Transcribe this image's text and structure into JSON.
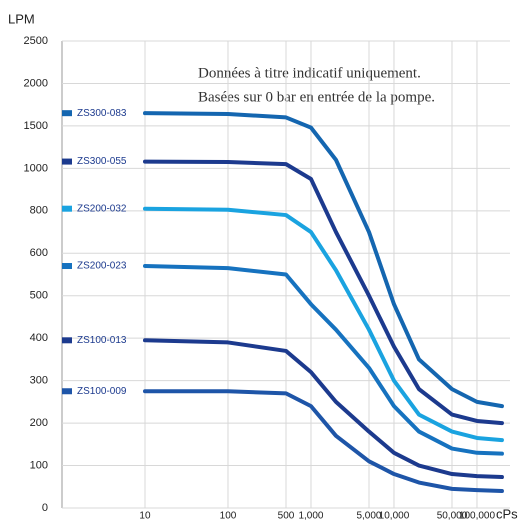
{
  "chart_data": {
    "type": "line",
    "y_label": "LPM",
    "x_label": "cPs",
    "annotation": [
      "Données à titre indicatif uniquement.",
      "Basées sur 0 bar en entrée de la pompe."
    ],
    "x": [
      10,
      100,
      500,
      1000,
      2000,
      5000,
      10000,
      20000,
      50000,
      100000,
      200000
    ],
    "xlim": [
      1,
      250000
    ],
    "xscale": "log",
    "xticks": [
      10,
      100,
      500,
      {
        "value": 1000,
        "label": "1,000"
      },
      {
        "value": 5000,
        "label": "5,000"
      },
      {
        "value": 10000,
        "label": "10,000"
      },
      {
        "value": 50000,
        "label": "50,000"
      },
      {
        "value": 100000,
        "label": "100,000"
      }
    ],
    "ylim": [
      0,
      2500
    ],
    "yticks": [
      0,
      100,
      200,
      300,
      400,
      500,
      600,
      800,
      1000,
      1500,
      2000,
      2500
    ],
    "grid": true,
    "series": [
      {
        "name": "ZS300-083",
        "color": "#1466b0",
        "values": [
          1650,
          1640,
          1600,
          1480,
          1100,
          700,
          480,
          350,
          280,
          250,
          240
        ]
      },
      {
        "name": "ZS300-055",
        "color": "#1c3a8e",
        "values": [
          1080,
          1075,
          1050,
          950,
          700,
          500,
          380,
          280,
          220,
          205,
          200
        ]
      },
      {
        "name": "ZS200-032",
        "color": "#1aa3e0",
        "values": [
          810,
          805,
          780,
          700,
          560,
          420,
          300,
          220,
          180,
          165,
          160
        ]
      },
      {
        "name": "ZS200-023",
        "color": "#1672bf",
        "values": [
          570,
          565,
          550,
          480,
          420,
          330,
          240,
          180,
          140,
          130,
          128
        ]
      },
      {
        "name": "ZS100-013",
        "color": "#1c3a8e",
        "values": [
          395,
          390,
          370,
          320,
          250,
          180,
          130,
          100,
          80,
          75,
          73
        ]
      },
      {
        "name": "ZS100-009",
        "color": "#1e55a8",
        "values": [
          275,
          275,
          270,
          240,
          170,
          110,
          80,
          60,
          45,
          42,
          40
        ]
      }
    ]
  }
}
